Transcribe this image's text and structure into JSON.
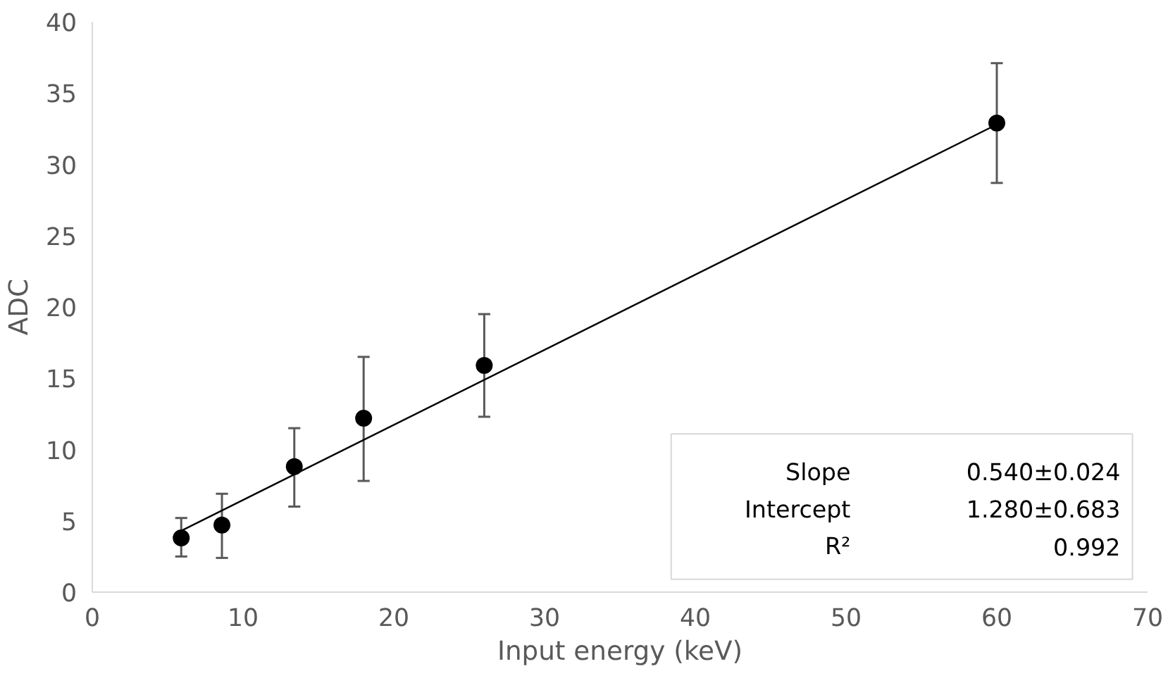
{
  "chart_data": {
    "type": "scatter",
    "xlabel": "Input energy (keV)",
    "ylabel": "ADC",
    "xlim": [
      0,
      70
    ],
    "xticks": [
      0,
      10,
      20,
      30,
      40,
      50,
      60,
      70
    ],
    "ylim": [
      0,
      40
    ],
    "yticks": [
      0,
      5,
      10,
      15,
      20,
      25,
      30,
      35,
      40
    ],
    "grid": false,
    "series": [
      {
        "color": "#000000",
        "marker": "circle",
        "x": [
          5.9,
          8.6,
          13.4,
          18.0,
          26.0,
          60.0
        ],
        "values": [
          3.8,
          4.7,
          8.8,
          12.2,
          15.9,
          32.9
        ],
        "errors": [
          [
            2.5,
            5.2
          ],
          [
            2.4,
            6.9
          ],
          [
            6.0,
            11.5
          ],
          [
            7.8,
            16.5
          ],
          [
            12.3,
            19.5
          ],
          [
            28.7,
            37.1
          ]
        ]
      },
      {
        "type": "line",
        "color": "#000000",
        "x": [
          5.9,
          60.0
        ],
        "values": [
          4.3,
          32.8
        ]
      }
    ],
    "annotations": [
      "Slope",
      "0.540±0.024",
      "Intercept",
      "1.280±0.683",
      "R²",
      "0.992"
    ]
  }
}
